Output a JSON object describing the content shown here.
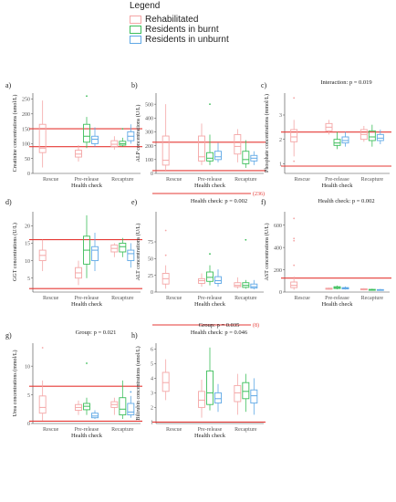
{
  "legend": {
    "title": "Legend",
    "items": [
      {
        "label": "Rehabilitated",
        "color": "#f4a6a6"
      },
      {
        "label": "Residents in burnt",
        "color": "#3cbe5a"
      },
      {
        "label": "Residents in unburnt",
        "color": "#5fa8e6"
      }
    ]
  },
  "chart_data": [
    {
      "type": "boxplot",
      "panel_label": "a)",
      "annotation": "",
      "ylabel": "Creatinine concentrations (umol/L)",
      "xlabel": "Health check",
      "categories": [
        "Rescue",
        "Pre-release",
        "Recapture"
      ],
      "yticks": [
        0,
        50,
        100,
        150,
        200,
        250
      ],
      "ylim": [
        0,
        270
      ],
      "ref_lines": [
        150,
        90
      ],
      "ref_label": "",
      "boxes": [
        {
          "cat": 0,
          "series": "Rehabilitated",
          "min": 20,
          "q1": 70,
          "median": 85,
          "q3": 165,
          "max": 245,
          "outliers": []
        },
        {
          "cat": 1,
          "series": "Rehabilitated",
          "min": 40,
          "q1": 55,
          "median": 65,
          "q3": 78,
          "max": 95,
          "outliers": []
        },
        {
          "cat": 1,
          "series": "Residents in burnt",
          "min": 85,
          "q1": 105,
          "median": 125,
          "q3": 165,
          "max": 190,
          "outliers": [
            260
          ]
        },
        {
          "cat": 1,
          "series": "Residents in unburnt",
          "min": 90,
          "q1": 100,
          "median": 115,
          "q3": 125,
          "max": 155,
          "outliers": []
        },
        {
          "cat": 2,
          "series": "Rehabilitated",
          "min": 80,
          "q1": 90,
          "median": 98,
          "q3": 110,
          "max": 125,
          "outliers": []
        },
        {
          "cat": 2,
          "series": "Residents in burnt",
          "min": 90,
          "q1": 95,
          "median": 100,
          "q3": 108,
          "max": 120,
          "outliers": [
            150
          ]
        },
        {
          "cat": 2,
          "series": "Residents in unburnt",
          "min": 100,
          "q1": 110,
          "median": 125,
          "q3": 140,
          "max": 165,
          "outliers": []
        }
      ]
    },
    {
      "type": "boxplot",
      "panel_label": "b)",
      "annotation": "",
      "ylabel": "ALP concentrations (U/L)",
      "xlabel": "Health check",
      "categories": [
        "Rescue",
        "Pre-release",
        "Recapture"
      ],
      "yticks": [
        0,
        100,
        200,
        300,
        400,
        500
      ],
      "ylim": [
        0,
        580
      ],
      "ref_lines": [
        225,
        20
      ],
      "ref_label": "",
      "boxes": [
        {
          "cat": 0,
          "series": "Rehabilitated",
          "min": 20,
          "q1": 60,
          "median": 95,
          "q3": 270,
          "max": 500,
          "outliers": []
        },
        {
          "cat": 1,
          "series": "Rehabilitated",
          "min": 60,
          "q1": 90,
          "median": 120,
          "q3": 270,
          "max": 360,
          "outliers": []
        },
        {
          "cat": 1,
          "series": "Residents in burnt",
          "min": 60,
          "q1": 90,
          "median": 110,
          "q3": 150,
          "max": 280,
          "outliers": [
            500
          ]
        },
        {
          "cat": 1,
          "series": "Residents in unburnt",
          "min": 80,
          "q1": 100,
          "median": 120,
          "q3": 160,
          "max": 220,
          "outliers": []
        },
        {
          "cat": 2,
          "series": "Rehabilitated",
          "min": 80,
          "q1": 140,
          "median": 195,
          "q3": 280,
          "max": 320,
          "outliers": []
        },
        {
          "cat": 2,
          "series": "Residents in burnt",
          "min": 40,
          "q1": 70,
          "median": 100,
          "q3": 160,
          "max": 240,
          "outliers": []
        },
        {
          "cat": 2,
          "series": "Residents in unburnt",
          "min": 60,
          "q1": 90,
          "median": 110,
          "q3": 130,
          "max": 160,
          "outliers": []
        }
      ]
    },
    {
      "type": "boxplot",
      "panel_label": "c)",
      "annotation": "Interaction: p = 0.019",
      "ylabel": "Phosphate concentrations (mmol/L)",
      "xlabel": "Health check",
      "categories": [
        "Rescue",
        "Pre-release",
        "Recapture"
      ],
      "yticks": [
        1,
        2,
        3
      ],
      "ylim": [
        0.6,
        3.9
      ],
      "ref_lines": [
        2.3,
        0.9
      ],
      "ref_label": "",
      "boxes": [
        {
          "cat": 0,
          "series": "Rehabilitated",
          "min": 1.3,
          "q1": 1.9,
          "median": 2.1,
          "q3": 2.4,
          "max": 2.8,
          "outliers": [
            3.7,
            1.1
          ]
        },
        {
          "cat": 1,
          "series": "Rehabilitated",
          "min": 2.2,
          "q1": 2.35,
          "median": 2.5,
          "q3": 2.65,
          "max": 2.8,
          "outliers": []
        },
        {
          "cat": 1,
          "series": "Residents in burnt",
          "min": 1.6,
          "q1": 1.75,
          "median": 1.85,
          "q3": 2.0,
          "max": 2.3,
          "outliers": []
        },
        {
          "cat": 1,
          "series": "Residents in unburnt",
          "min": 1.7,
          "q1": 1.85,
          "median": 1.95,
          "q3": 2.1,
          "max": 2.3,
          "outliers": []
        },
        {
          "cat": 2,
          "series": "Rehabilitated",
          "min": 1.9,
          "q1": 2.0,
          "median": 2.2,
          "q3": 2.4,
          "max": 2.55,
          "outliers": []
        },
        {
          "cat": 2,
          "series": "Residents in burnt",
          "min": 1.7,
          "q1": 1.95,
          "median": 2.1,
          "q3": 2.35,
          "max": 2.6,
          "outliers": []
        },
        {
          "cat": 2,
          "series": "Residents in unburnt",
          "min": 1.8,
          "q1": 1.95,
          "median": 2.05,
          "q3": 2.2,
          "max": 2.4,
          "outliers": []
        }
      ]
    },
    {
      "type": "boxplot",
      "panel_label": "d)",
      "annotation": "",
      "ylabel": "GGT concentrations (U/L)",
      "xlabel": "Health check",
      "categories": [
        "Rescue",
        "Pre-release",
        "Recapture"
      ],
      "yticks": [
        5,
        10,
        15,
        20
      ],
      "ylim": [
        1,
        24
      ],
      "ref_lines": [
        16,
        2
      ],
      "ref_label": "",
      "boxes": [
        {
          "cat": 0,
          "series": "Rehabilitated",
          "min": 7,
          "q1": 10,
          "median": 11.5,
          "q3": 13,
          "max": 16,
          "outliers": []
        },
        {
          "cat": 1,
          "series": "Rehabilitated",
          "min": 3,
          "q1": 5,
          "median": 6.5,
          "q3": 8,
          "max": 10,
          "outliers": []
        },
        {
          "cat": 1,
          "series": "Residents in burnt",
          "min": 5,
          "q1": 9,
          "median": 13,
          "q3": 17,
          "max": 23,
          "outliers": []
        },
        {
          "cat": 1,
          "series": "Residents in unburnt",
          "min": 7,
          "q1": 10,
          "median": 13,
          "q3": 14,
          "max": 18,
          "outliers": []
        },
        {
          "cat": 2,
          "series": "Rehabilitated",
          "min": 11,
          "q1": 12.5,
          "median": 13.5,
          "q3": 14.5,
          "max": 15,
          "outliers": []
        },
        {
          "cat": 2,
          "series": "Residents in burnt",
          "min": 11,
          "q1": 12.5,
          "median": 14,
          "q3": 15,
          "max": 16.5,
          "outliers": []
        },
        {
          "cat": 2,
          "series": "Residents in unburnt",
          "min": 8,
          "q1": 10,
          "median": 12,
          "q3": 13,
          "max": 15,
          "outliers": []
        }
      ]
    },
    {
      "type": "boxplot",
      "panel_label": "e)",
      "annotation": "Health check: p = 0.002",
      "ylabel": "ALT concentrations (U/L)",
      "xlabel": "Health check",
      "categories": [
        "Rescue",
        "Pre-release",
        "Recapture"
      ],
      "yticks": [
        0,
        25,
        50,
        75
      ],
      "ylim": [
        0,
        120
      ],
      "ref_lines": [],
      "ref_label": "(236)",
      "boxes": [
        {
          "cat": 0,
          "series": "Rehabilitated",
          "min": 5,
          "q1": 12,
          "median": 20,
          "q3": 28,
          "max": 40,
          "outliers": [
            92,
            55
          ]
        },
        {
          "cat": 1,
          "series": "Rehabilitated",
          "min": 8,
          "q1": 13,
          "median": 17,
          "q3": 20,
          "max": 28,
          "outliers": []
        },
        {
          "cat": 1,
          "series": "Residents in burnt",
          "min": 10,
          "q1": 16,
          "median": 22,
          "q3": 30,
          "max": 40,
          "outliers": [
            57
          ]
        },
        {
          "cat": 1,
          "series": "Residents in unburnt",
          "min": 8,
          "q1": 13,
          "median": 17,
          "q3": 23,
          "max": 34,
          "outliers": []
        },
        {
          "cat": 2,
          "series": "Rehabilitated",
          "min": 5,
          "q1": 8,
          "median": 10,
          "q3": 14,
          "max": 22,
          "outliers": []
        },
        {
          "cat": 2,
          "series": "Residents in burnt",
          "min": 5,
          "q1": 7,
          "median": 10,
          "q3": 14,
          "max": 18,
          "outliers": [
            78
          ]
        },
        {
          "cat": 2,
          "series": "Residents in unburnt",
          "min": 4,
          "q1": 6,
          "median": 8,
          "q3": 12,
          "max": 18,
          "outliers": []
        }
      ]
    },
    {
      "type": "boxplot",
      "panel_label": "f)",
      "annotation": "Health check: p = 0.002",
      "ylabel": "AST concentrations (U/L)",
      "xlabel": "Health check",
      "categories": [
        "Rescue",
        "Pre-release",
        "Recapture"
      ],
      "yticks": [
        0,
        200,
        400,
        600
      ],
      "ylim": [
        0,
        720
      ],
      "ref_lines": [
        125
      ],
      "ref_label": "",
      "boxes": [
        {
          "cat": 0,
          "series": "Rehabilitated",
          "min": 20,
          "q1": 40,
          "median": 60,
          "q3": 90,
          "max": 140,
          "outliers": [
            660,
            480,
            460,
            240
          ]
        },
        {
          "cat": 1,
          "series": "Rehabilitated",
          "min": 20,
          "q1": 25,
          "median": 30,
          "q3": 35,
          "max": 40,
          "outliers": []
        },
        {
          "cat": 1,
          "series": "Residents in burnt",
          "min": 25,
          "q1": 32,
          "median": 40,
          "q3": 48,
          "max": 58,
          "outliers": []
        },
        {
          "cat": 1,
          "series": "Residents in unburnt",
          "min": 22,
          "q1": 28,
          "median": 35,
          "q3": 40,
          "max": 50,
          "outliers": []
        },
        {
          "cat": 2,
          "series": "Rehabilitated",
          "min": 15,
          "q1": 20,
          "median": 25,
          "q3": 30,
          "max": 35,
          "outliers": []
        },
        {
          "cat": 2,
          "series": "Residents in burnt",
          "min": 12,
          "q1": 16,
          "median": 20,
          "q3": 24,
          "max": 30,
          "outliers": []
        },
        {
          "cat": 2,
          "series": "Residents in unburnt",
          "min": 12,
          "q1": 15,
          "median": 18,
          "q3": 22,
          "max": 28,
          "outliers": []
        }
      ]
    },
    {
      "type": "boxplot",
      "panel_label": "g)",
      "annotation": "Group: p = 0.021",
      "ylabel": "Urea concentrations (mmol/L)",
      "xlabel": "Health check",
      "categories": [
        "Rescue",
        "Pre-release",
        "Recapture"
      ],
      "yticks": [
        0,
        5,
        10
      ],
      "ylim": [
        0,
        14
      ],
      "ref_lines": [
        6.5,
        0.4
      ],
      "ref_label": "",
      "boxes": [
        {
          "cat": 0,
          "series": "Rehabilitated",
          "min": 0.5,
          "q1": 1.8,
          "median": 2.8,
          "q3": 4.8,
          "max": 7.5,
          "outliers": [
            13.2
          ]
        },
        {
          "cat": 1,
          "series": "Rehabilitated",
          "min": 1.5,
          "q1": 2.3,
          "median": 2.8,
          "q3": 3.3,
          "max": 4.0,
          "outliers": []
        },
        {
          "cat": 1,
          "series": "Residents in burnt",
          "min": 1.5,
          "q1": 2.4,
          "median": 3.0,
          "q3": 3.5,
          "max": 4.5,
          "outliers": [
            10.5
          ]
        },
        {
          "cat": 1,
          "series": "Residents in unburnt",
          "min": 0.8,
          "q1": 1.0,
          "median": 1.3,
          "q3": 1.8,
          "max": 2.3,
          "outliers": []
        },
        {
          "cat": 2,
          "series": "Rehabilitated",
          "min": 1.5,
          "q1": 2.8,
          "median": 3.3,
          "q3": 3.8,
          "max": 4.5,
          "outliers": []
        },
        {
          "cat": 2,
          "series": "Residents in burnt",
          "min": 0.8,
          "q1": 1.5,
          "median": 2.5,
          "q3": 4.5,
          "max": 7.5,
          "outliers": []
        },
        {
          "cat": 2,
          "series": "Residents in unburnt",
          "min": 1.0,
          "q1": 1.5,
          "median": 2.0,
          "q3": 3.5,
          "max": 4.8,
          "outliers": [
            5.5
          ]
        }
      ]
    },
    {
      "type": "boxplot",
      "panel_label": "h)",
      "annotation": "Group: p = 0.035\nHealth check: p = 0.046",
      "ylabel": "Bilirubin concentrations (umol/L)",
      "xlabel": "Health check",
      "categories": [
        "Rescue",
        "Pre-release",
        "Recapture"
      ],
      "yticks": [
        1,
        2,
        3,
        4,
        5,
        6
      ],
      "ylim": [
        0.9,
        6.4
      ],
      "ref_lines": [
        1
      ],
      "ref_label": "(8)",
      "boxes": [
        {
          "cat": 0,
          "series": "Rehabilitated",
          "min": 2.5,
          "q1": 3.1,
          "median": 3.7,
          "q3": 4.4,
          "max": 5.3,
          "outliers": []
        },
        {
          "cat": 1,
          "series": "Rehabilitated",
          "min": 1.3,
          "q1": 2.0,
          "median": 2.5,
          "q3": 3.1,
          "max": 3.9,
          "outliers": []
        },
        {
          "cat": 1,
          "series": "Residents in burnt",
          "min": 1.8,
          "q1": 2.2,
          "median": 3.0,
          "q3": 4.5,
          "max": 6.1,
          "outliers": []
        },
        {
          "cat": 1,
          "series": "Residents in unburnt",
          "min": 1.7,
          "q1": 2.3,
          "median": 2.6,
          "q3": 3.0,
          "max": 3.6,
          "outliers": []
        },
        {
          "cat": 2,
          "series": "Rehabilitated",
          "min": 1.5,
          "q1": 2.4,
          "median": 3.0,
          "q3": 3.5,
          "max": 4.3,
          "outliers": []
        },
        {
          "cat": 2,
          "series": "Residents in burnt",
          "min": 1.7,
          "q1": 2.6,
          "median": 3.1,
          "q3": 3.7,
          "max": 4.3,
          "outliers": []
        },
        {
          "cat": 2,
          "series": "Residents in unburnt",
          "min": 1.5,
          "q1": 2.3,
          "median": 2.8,
          "q3": 3.2,
          "max": 4.0,
          "outliers": []
        }
      ]
    }
  ]
}
